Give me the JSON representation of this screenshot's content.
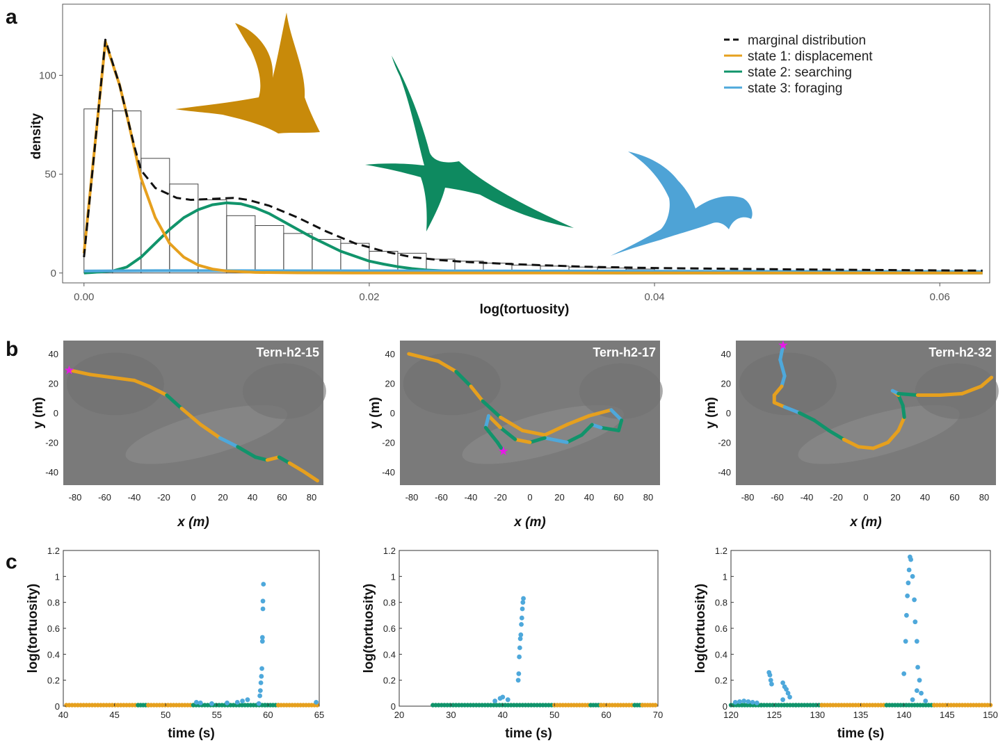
{
  "colors": {
    "state1": "#e6a01e",
    "state2": "#11946b",
    "state3": "#4ea8db",
    "marginal": "#111111",
    "start_marker": "#e619e6",
    "bird1": "#c88a0a",
    "bird2": "#0e8a60",
    "bird3": "#4ea3d6",
    "map_bg": "#7a7a7a"
  },
  "panels": {
    "a": "a",
    "b": "b",
    "c": "c"
  },
  "panel_a": {
    "legend": [
      {
        "label": "marginal distribution",
        "style": "dashed",
        "color": "#111111"
      },
      {
        "label": "state 1: displacement",
        "style": "solid",
        "color": "#e6a01e"
      },
      {
        "label": "state 2: searching",
        "style": "solid",
        "color": "#11946b"
      },
      {
        "label": "state 3: foraging",
        "style": "solid",
        "color": "#4ea8db"
      }
    ]
  },
  "panel_b": {
    "maps": [
      {
        "label": "Tern-h2-15"
      },
      {
        "label": "Tern-h2-17"
      },
      {
        "label": "Tern-h2-32"
      }
    ]
  },
  "chart_data": [
    {
      "type": "histogram+density",
      "panel": "a",
      "xlabel": "log(tortuosity)",
      "ylabel": "density",
      "xlim": [
        -0.0015,
        0.0635
      ],
      "ylim": [
        -5,
        136
      ],
      "x_ticks": [
        "0.00",
        "0.02",
        "0.04",
        "0.06"
      ],
      "y_ticks": [
        "0",
        "50",
        "100"
      ],
      "grid": false,
      "legend_position": "top-right",
      "histogram": {
        "bin_edges": [
          0,
          0.002,
          0.004,
          0.006,
          0.008,
          0.01,
          0.012,
          0.014,
          0.016,
          0.018,
          0.02,
          0.022,
          0.024,
          0.026,
          0.028,
          0.03,
          0.032,
          0.034,
          0.036,
          0.038,
          0.04
        ],
        "heights": [
          83,
          82,
          58,
          45,
          37,
          29,
          24,
          20,
          17,
          15,
          11,
          10,
          7,
          6,
          5,
          4,
          3.5,
          3,
          2.5,
          2
        ]
      },
      "series": [
        {
          "name": "marginal distribution",
          "x": [
            0,
            0.0015,
            0.0025,
            0.0035,
            0.004,
            0.005,
            0.0065,
            0.0075,
            0.009,
            0.0105,
            0.0115,
            0.013,
            0.015,
            0.017,
            0.019,
            0.021,
            0.023,
            0.025,
            0.027,
            0.03,
            0.035,
            0.04,
            0.05,
            0.063
          ],
          "y": [
            8,
            118,
            95,
            65,
            52,
            43,
            38,
            37,
            37.5,
            38,
            37,
            34,
            28,
            21,
            15,
            11,
            8,
            6.5,
            5.5,
            4.5,
            3.2,
            2.5,
            1.8,
            1.2
          ]
        },
        {
          "name": "state 1: displacement",
          "x": [
            0,
            0.0015,
            0.0025,
            0.003,
            0.004,
            0.005,
            0.006,
            0.007,
            0.008,
            0.009,
            0.01,
            0.012,
            0.015,
            0.02,
            0.063
          ],
          "y": [
            10,
            117,
            95,
            80,
            48,
            28,
            15,
            8,
            4,
            2,
            1,
            0.3,
            0.1,
            0,
            0
          ]
        },
        {
          "name": "state 2: searching",
          "x": [
            0,
            0.002,
            0.003,
            0.004,
            0.005,
            0.006,
            0.007,
            0.008,
            0.009,
            0.01,
            0.011,
            0.012,
            0.013,
            0.014,
            0.015,
            0.016,
            0.017,
            0.018,
            0.019,
            0.02,
            0.021,
            0.022,
            0.023,
            0.024,
            0.026,
            0.028,
            0.03,
            0.035,
            0.04,
            0.063
          ],
          "y": [
            0,
            1,
            3,
            8,
            15,
            22,
            28,
            32,
            34.5,
            35.5,
            35,
            33,
            30,
            26,
            22,
            18,
            14.5,
            11,
            8.5,
            6,
            4.5,
            3.2,
            2.2,
            1.5,
            0.8,
            0.4,
            0.2,
            0.05,
            0,
            0
          ]
        },
        {
          "name": "state 3: foraging",
          "x": [
            0,
            0.005,
            0.01,
            0.02,
            0.03,
            0.04,
            0.05,
            0.063
          ],
          "y": [
            1,
            1.2,
            1.2,
            1.1,
            1.0,
            0.9,
            0.8,
            0.7
          ]
        }
      ]
    },
    {
      "type": "line",
      "panel": "b",
      "title": "Tern-h2-15",
      "xlabel": "x (m)",
      "ylabel": "y (m)",
      "xlim": [
        -88,
        88
      ],
      "ylim": [
        -49,
        49
      ],
      "x_ticks": [
        "-80",
        "-60",
        "-40",
        "-20",
        "0",
        "20",
        "40",
        "60",
        "80"
      ],
      "y_ticks": [
        "-40",
        "-20",
        "0",
        "20",
        "40"
      ],
      "track": {
        "x": [
          -84,
          -70,
          -55,
          -40,
          -30,
          -18,
          -8,
          5,
          18,
          30,
          42,
          50,
          58,
          65,
          75,
          84
        ],
        "y": [
          29,
          26,
          24,
          22,
          18,
          12,
          3,
          -8,
          -17,
          -23,
          -30,
          -32,
          -30,
          -34,
          -40,
          -46
        ],
        "state": [
          1,
          1,
          1,
          1,
          1,
          2,
          1,
          1,
          3,
          2,
          2,
          1,
          2,
          1,
          1,
          3
        ]
      },
      "start": [
        -84,
        29
      ]
    },
    {
      "type": "line",
      "panel": "b",
      "title": "Tern-h2-17",
      "xlabel": "x (m)",
      "ylabel": "y (m)",
      "xlim": [
        -88,
        88
      ],
      "ylim": [
        -49,
        49
      ],
      "x_ticks": [
        "-80",
        "-60",
        "-40",
        "-20",
        "0",
        "20",
        "40",
        "60",
        "80"
      ],
      "y_ticks": [
        "-40",
        "-20",
        "0",
        "20",
        "40"
      ],
      "track": {
        "x": [
          -82,
          -62,
          -50,
          -40,
          -32,
          -20,
          -5,
          10,
          25,
          40,
          55,
          62,
          60,
          48,
          42,
          35,
          25,
          10,
          0,
          -10,
          -20,
          -28,
          -30,
          -22,
          -18
        ],
        "y": [
          40,
          35,
          28,
          18,
          8,
          -3,
          -12,
          -15,
          -8,
          -2,
          2,
          -5,
          -12,
          -10,
          -8,
          -15,
          -20,
          -17,
          -20,
          -18,
          -10,
          -2,
          -10,
          -20,
          -26
        ],
        "state": [
          1,
          1,
          2,
          1,
          2,
          1,
          1,
          1,
          1,
          1,
          3,
          2,
          2,
          3,
          2,
          2,
          3,
          2,
          1,
          2,
          1,
          3,
          2,
          2,
          2
        ]
      },
      "start": [
        -18,
        -26
      ]
    },
    {
      "type": "line",
      "panel": "b",
      "title": "Tern-h2-32",
      "xlabel": "x (m)",
      "ylabel": "y (m)",
      "xlim": [
        -88,
        88
      ],
      "ylim": [
        -49,
        49
      ],
      "x_ticks": [
        "-80",
        "-60",
        "-40",
        "-20",
        "0",
        "20",
        "40",
        "60",
        "80"
      ],
      "y_ticks": [
        "-40",
        "-20",
        "0",
        "20",
        "40"
      ],
      "track": {
        "x": [
          -56,
          -58,
          -55,
          -57,
          -62,
          -62,
          -55,
          -45,
          -35,
          -25,
          -15,
          -5,
          5,
          15,
          22,
          26,
          25,
          22,
          18,
          22,
          35,
          50,
          65,
          78,
          85
        ],
        "y": [
          46,
          36,
          25,
          18,
          12,
          7,
          4,
          0,
          -5,
          -12,
          -18,
          -23,
          -24,
          -20,
          -12,
          -3,
          5,
          12,
          15,
          13,
          12,
          12,
          13,
          18,
          24
        ],
        "state": [
          3,
          3,
          3,
          1,
          1,
          1,
          3,
          2,
          2,
          2,
          1,
          1,
          1,
          1,
          1,
          2,
          2,
          1,
          3,
          2,
          1,
          1,
          1,
          1,
          1
        ]
      },
      "start": [
        -56,
        46
      ]
    },
    {
      "type": "scatter",
      "panel": "c",
      "xlabel": "time (s)",
      "ylabel": "log(tortuosity)",
      "xlim": [
        40,
        65
      ],
      "ylim": [
        0,
        1.2
      ],
      "x_ticks": [
        "40",
        "45",
        "50",
        "55",
        "60",
        "65"
      ],
      "y_ticks": [
        "0",
        "0.2",
        "0.4",
        "0.6",
        "0.8",
        "1",
        "1.2"
      ],
      "baseline": [
        {
          "from": 40.3,
          "to": 47.3,
          "state": 1
        },
        {
          "from": 47.3,
          "to": 48.3,
          "state": 2
        },
        {
          "from": 48.3,
          "to": 52.7,
          "state": 1
        },
        {
          "from": 52.7,
          "to": 59.7,
          "state": 2
        },
        {
          "from": 59.7,
          "to": 61.0,
          "state": 2
        },
        {
          "from": 61.0,
          "to": 64.8,
          "state": 1
        }
      ],
      "points": {
        "state3": [
          [
            53.0,
            0.03
          ],
          [
            53.4,
            0.025
          ],
          [
            54.5,
            0.02
          ],
          [
            56.0,
            0.025
          ],
          [
            57.0,
            0.03
          ],
          [
            57.5,
            0.04
          ],
          [
            58.0,
            0.05
          ],
          [
            59.1,
            0.02
          ],
          [
            59.2,
            0.08
          ],
          [
            59.25,
            0.12
          ],
          [
            59.3,
            0.18
          ],
          [
            59.35,
            0.23
          ],
          [
            59.4,
            0.29
          ],
          [
            59.45,
            0.5
          ],
          [
            59.45,
            0.53
          ],
          [
            59.5,
            0.75
          ],
          [
            59.5,
            0.81
          ],
          [
            59.55,
            0.94
          ],
          [
            64.7,
            0.03
          ]
        ]
      }
    },
    {
      "type": "scatter",
      "panel": "c",
      "xlabel": "time (s)",
      "ylabel": "log(tortuosity)",
      "xlim": [
        20,
        70
      ],
      "ylim": [
        0,
        1.2
      ],
      "x_ticks": [
        "20",
        "30",
        "40",
        "50",
        "60",
        "70"
      ],
      "y_ticks": [
        "0",
        "0.2",
        "0.4",
        "0.6",
        "0.8",
        "1",
        "1.2"
      ],
      "baseline": [
        {
          "from": 26.5,
          "to": 50.0,
          "state": 2
        },
        {
          "from": 50.0,
          "to": 57.0,
          "state": 1
        },
        {
          "from": 57.0,
          "to": 59.0,
          "state": 2
        },
        {
          "from": 59.0,
          "to": 65.5,
          "state": 1
        },
        {
          "from": 65.5,
          "to": 67.0,
          "state": 2
        },
        {
          "from": 67.0,
          "to": 69.5,
          "state": 1
        }
      ],
      "points": {
        "state3": [
          [
            38.5,
            0.04
          ],
          [
            39.5,
            0.06
          ],
          [
            40.0,
            0.07
          ],
          [
            41.0,
            0.05
          ],
          [
            43.0,
            0.2
          ],
          [
            43.1,
            0.25
          ],
          [
            43.2,
            0.38
          ],
          [
            43.3,
            0.45
          ],
          [
            43.4,
            0.52
          ],
          [
            43.5,
            0.55
          ],
          [
            43.6,
            0.63
          ],
          [
            43.7,
            0.68
          ],
          [
            43.8,
            0.75
          ],
          [
            43.9,
            0.8
          ],
          [
            44.0,
            0.83
          ]
        ]
      }
    },
    {
      "type": "scatter",
      "panel": "c",
      "xlabel": "time (s)",
      "ylabel": "log(tortuosity)",
      "xlim": [
        120,
        150
      ],
      "ylim": [
        0,
        1.2
      ],
      "x_ticks": [
        "120",
        "125",
        "130",
        "135",
        "140",
        "145",
        "150"
      ],
      "y_ticks": [
        "0",
        "0.2",
        "0.4",
        "0.6",
        "0.8",
        "1",
        "1.2"
      ],
      "baseline": [
        {
          "from": 120.0,
          "to": 123.5,
          "state": 2
        },
        {
          "from": 123.5,
          "to": 127.5,
          "state": 2
        },
        {
          "from": 127.5,
          "to": 130.5,
          "state": 2
        },
        {
          "from": 130.5,
          "to": 138.0,
          "state": 1
        },
        {
          "from": 138.0,
          "to": 143.5,
          "state": 2
        },
        {
          "from": 143.5,
          "to": 150.0,
          "state": 1
        }
      ],
      "points": {
        "state3": [
          [
            120.5,
            0.03
          ],
          [
            121.0,
            0.035
          ],
          [
            121.5,
            0.04
          ],
          [
            122.0,
            0.035
          ],
          [
            122.5,
            0.03
          ],
          [
            123.0,
            0.025
          ],
          [
            124.4,
            0.26
          ],
          [
            124.5,
            0.24
          ],
          [
            124.6,
            0.2
          ],
          [
            124.7,
            0.17
          ],
          [
            126.0,
            0.18
          ],
          [
            126.2,
            0.15
          ],
          [
            126.4,
            0.13
          ],
          [
            126.6,
            0.1
          ],
          [
            126.8,
            0.07
          ],
          [
            126.0,
            0.05
          ],
          [
            140.0,
            0.25
          ],
          [
            140.2,
            0.5
          ],
          [
            140.3,
            0.7
          ],
          [
            140.4,
            0.85
          ],
          [
            140.5,
            0.95
          ],
          [
            140.6,
            1.05
          ],
          [
            140.7,
            1.15
          ],
          [
            140.8,
            1.13
          ],
          [
            141.0,
            1.0
          ],
          [
            141.2,
            0.82
          ],
          [
            141.3,
            0.65
          ],
          [
            141.5,
            0.5
          ],
          [
            141.6,
            0.3
          ],
          [
            141.8,
            0.2
          ],
          [
            142.0,
            0.1
          ],
          [
            141.0,
            0.05
          ],
          [
            141.5,
            0.12
          ],
          [
            142.5,
            0.04
          ]
        ]
      }
    }
  ]
}
